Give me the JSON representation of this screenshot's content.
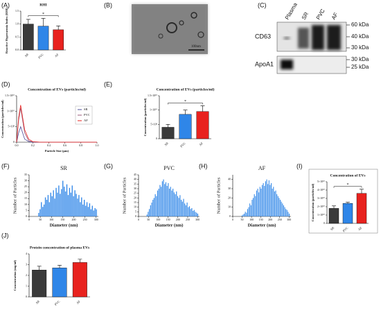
{
  "panel_labels": [
    "(A)",
    "(B)",
    "(C)",
    "(D)",
    "(E)",
    "(F)",
    "(G)",
    "(H)",
    "(I)",
    "(J)"
  ],
  "tem": {
    "scale_label": "100nm"
  },
  "blot": {
    "lanes": [
      "Plasma",
      "SR",
      "PVC",
      "AF"
    ],
    "proteins": [
      "CD63",
      "ApoA1"
    ],
    "markers": [
      "60 kDa",
      "40 kDa",
      "30 kDa",
      "30 kDa",
      "25 kDa"
    ]
  },
  "chart_data": [
    {
      "type": "bar",
      "title": "RHI",
      "ylabel": "Reactive Hyperaemia Index (RHI)",
      "categories": [
        "SR",
        "PVC",
        "AF"
      ],
      "values": [
        1.0,
        0.92,
        0.78
      ],
      "errors": [
        0.18,
        0.3,
        0.15
      ],
      "colors": [
        "#3a3a3a",
        "#2f86e8",
        "#e8221e"
      ],
      "annotation": "*",
      "ylim": [
        0,
        1.5
      ],
      "yticks": [
        {
          "value": 0,
          "label": "0.0"
        },
        0.5,
        {
          "value": 1,
          "label": "1.0"
        },
        1.5
      ]
    },
    {
      "type": "line",
      "title": "Concentration of EVs (particles/ml)",
      "xlabel": "Particle Size (μm)",
      "ylabel": "Concentration (particles/ml)",
      "x": [
        0,
        0.025,
        0.05,
        0.075,
        0.1,
        0.15,
        0.2,
        0.3,
        0.5,
        0.8,
        1.0
      ],
      "series": [
        {
          "name": "SR",
          "color": "#4b4b9a",
          "values": [
            0,
            3000000000,
            5000000000,
            3000000000,
            1000000000,
            200000000,
            0,
            0,
            0,
            0,
            0
          ]
        },
        {
          "name": "PVC",
          "color": "#9a5a78",
          "values": [
            0,
            7000000000,
            11000000000,
            7000000000,
            3000000000,
            500000000,
            100000000,
            0,
            0,
            0,
            0
          ]
        },
        {
          "name": "AF",
          "color": "#e8221e",
          "values": [
            0,
            8000000000,
            12000000000,
            8000000000,
            4000000000,
            1000000000,
            200000000,
            0,
            0,
            0,
            0
          ]
        }
      ],
      "xlim": [
        0,
        1
      ],
      "xticks": [
        {
          "value": 0,
          "label": "0.0"
        },
        0.2,
        0.4,
        0.6,
        0.8,
        {
          "value": 1,
          "label": "1.0"
        }
      ],
      "ylim": [
        0,
        15000000000
      ],
      "yticks": [
        0,
        {
          "value": 5000000000,
          "label": "5×10⁹"
        },
        {
          "value": 10000000000,
          "label": "1×10¹⁰"
        },
        {
          "value": 15000000000,
          "label": "1.5×10¹⁰"
        }
      ]
    },
    {
      "type": "bar",
      "title": "Concentration of EVs (particles/ml)",
      "ylabel": "Concentration (particles/ml)",
      "categories": [
        "SR",
        "PVC",
        "AF"
      ],
      "values": [
        4000000000,
        8500000000,
        9500000000
      ],
      "errors": [
        1000000000,
        1500000000,
        2000000000
      ],
      "colors": [
        "#3a3a3a",
        "#2f86e8",
        "#e8221e"
      ],
      "annotation": "*",
      "ylim": [
        0,
        15000000000
      ],
      "yticks": [
        0,
        {
          "value": 5000000000,
          "label": "5×10⁹"
        },
        {
          "value": 10000000000,
          "label": "1×10¹⁰"
        },
        {
          "value": 15000000000,
          "label": "1.5×10¹⁰"
        }
      ]
    },
    {
      "type": "histogram",
      "title": "SR",
      "xlabel": "Diameter (nm)",
      "ylabel": "Number of Particles",
      "color": "#2f86e8",
      "bins": [
        40,
        46,
        52,
        58,
        64,
        70,
        76,
        82,
        88,
        94,
        100,
        106,
        112,
        118,
        124,
        130,
        136,
        142,
        148,
        154,
        160,
        166,
        172,
        178,
        184,
        190,
        196,
        202,
        208,
        214,
        220,
        226,
        232,
        238,
        244,
        250,
        256,
        262,
        268,
        274,
        280,
        286,
        292,
        298,
        304
      ],
      "values": [
        3,
        6,
        12,
        8,
        10,
        16,
        14,
        18,
        12,
        20,
        17,
        22,
        15,
        24,
        20,
        26,
        19,
        23,
        30,
        25,
        21,
        27,
        18,
        24,
        20,
        26,
        17,
        22,
        19,
        15,
        18,
        12,
        16,
        10,
        14,
        9,
        12,
        8,
        11,
        6,
        9,
        5,
        7,
        6
      ],
      "xlim": [
        0,
        310
      ],
      "xticks": [
        0,
        50,
        100,
        150,
        200,
        250,
        300
      ],
      "ylim": [
        0,
        35
      ],
      "yticks": [
        0,
        5,
        10,
        15,
        20,
        25,
        30,
        35
      ]
    },
    {
      "type": "histogram",
      "title": "PVC",
      "xlabel": "Diameter (nm)",
      "ylabel": "Number of Particles",
      "color": "#2f86e8",
      "bins": [
        40,
        46,
        52,
        58,
        64,
        70,
        76,
        82,
        88,
        94,
        100,
        106,
        112,
        118,
        124,
        130,
        136,
        142,
        148,
        154,
        160,
        166,
        172,
        178,
        184,
        190,
        196,
        202,
        208,
        214,
        220,
        226,
        232,
        238,
        244,
        250,
        256,
        262,
        268,
        274,
        280,
        286,
        292,
        298,
        304
      ],
      "values": [
        2,
        5,
        8,
        12,
        15,
        18,
        20,
        24,
        22,
        28,
        30,
        34,
        32,
        38,
        40,
        35,
        37,
        33,
        36,
        30,
        32,
        28,
        30,
        26,
        24,
        27,
        22,
        20,
        23,
        18,
        16,
        19,
        14,
        12,
        15,
        10,
        11,
        8,
        9,
        6,
        7,
        5,
        4,
        3
      ],
      "xlim": [
        0,
        310
      ],
      "xticks": [
        0,
        50,
        100,
        150,
        200,
        250,
        300
      ],
      "ylim": [
        0,
        45
      ],
      "yticks": [
        0,
        5,
        10,
        15,
        20,
        25,
        30,
        35,
        40,
        45
      ]
    },
    {
      "type": "histogram",
      "title": "AF",
      "xlabel": "Diameter (nm)",
      "ylabel": "Number of Particles",
      "color": "#2f86e8",
      "bins": [
        40,
        46,
        52,
        58,
        64,
        70,
        76,
        82,
        88,
        94,
        100,
        106,
        112,
        118,
        124,
        130,
        136,
        142,
        148,
        154,
        160,
        166,
        172,
        178,
        184,
        190,
        196,
        202,
        208,
        214,
        220,
        226,
        232,
        238,
        244,
        250,
        256,
        262,
        268,
        274,
        280,
        286,
        292,
        298,
        304
      ],
      "values": [
        0,
        1,
        2,
        3,
        5,
        4,
        8,
        10,
        14,
        12,
        18,
        20,
        24,
        22,
        28,
        30,
        26,
        32,
        30,
        34,
        36,
        33,
        38,
        40,
        35,
        39,
        34,
        36,
        30,
        32,
        27,
        28,
        24,
        22,
        20,
        18,
        16,
        14,
        12,
        10,
        8,
        7,
        5,
        3
      ],
      "xlim": [
        0,
        310
      ],
      "xticks": [
        0,
        50,
        100,
        150,
        200,
        250,
        300
      ],
      "ylim": [
        0,
        45
      ],
      "yticks": [
        0,
        10,
        20,
        30,
        40
      ]
    },
    {
      "type": "bar",
      "title": "Concentration of EVs",
      "ylabel": "Concentration (particles/ml)",
      "categories": [
        "SR",
        "PVC",
        "AF"
      ],
      "values": [
        18000000000,
        24000000000,
        36000000000
      ],
      "errors": [
        3000000000,
        1500000000,
        5000000000
      ],
      "colors": [
        "#3a3a3a",
        "#2f86e8",
        "#e8221e"
      ],
      "annotation": "*",
      "ylim": [
        0,
        50000000000
      ],
      "yticks": [
        0,
        {
          "value": 10000000000,
          "label": "1×10¹⁰"
        },
        {
          "value": 20000000000,
          "label": "2×10¹⁰"
        },
        {
          "value": 30000000000,
          "label": "3×10¹⁰"
        },
        {
          "value": 40000000000,
          "label": "4×10¹⁰"
        },
        {
          "value": 50000000000,
          "label": "5×10¹⁰"
        }
      ]
    },
    {
      "type": "bar",
      "title": "Protein concentration of  plasma EVs",
      "ylabel": "Concentration (mg/ml)",
      "categories": [
        "SR",
        "PVC",
        "AF"
      ],
      "values": [
        2.5,
        2.7,
        3.2
      ],
      "errors": [
        0.35,
        0.25,
        0.3
      ],
      "colors": [
        "#3a3a3a",
        "#2f86e8",
        "#e8221e"
      ],
      "ylim": [
        0,
        4
      ],
      "yticks": [
        0,
        1,
        2,
        3,
        4
      ]
    }
  ]
}
